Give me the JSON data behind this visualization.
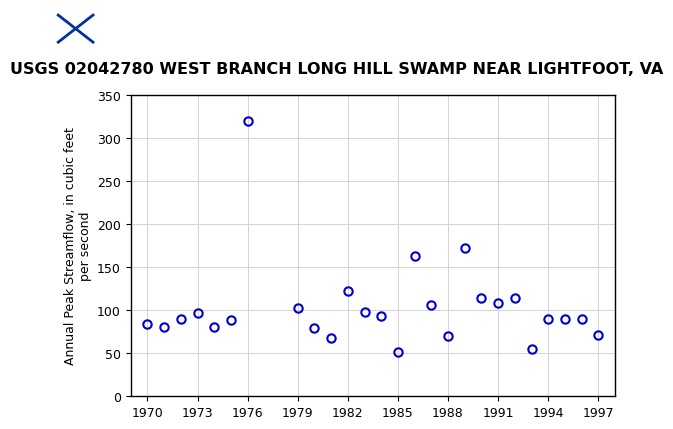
{
  "title": "USGS 02042780 WEST BRANCH LONG HILL SWAMP NEAR LIGHTFOOT, VA",
  "ylabel": "Annual Peak Streamflow, in cubic feet\nper second",
  "xlabel": "",
  "years": [
    1970,
    1971,
    1972,
    1973,
    1974,
    1975,
    1976,
    1979,
    1980,
    1981,
    1982,
    1983,
    1984,
    1985,
    1986,
    1987,
    1988,
    1989,
    1990,
    1991,
    1992,
    1993,
    1994,
    1995,
    1996,
    1997
  ],
  "flows": [
    84,
    81,
    90,
    97,
    80,
    89,
    320,
    103,
    79,
    68,
    122,
    98,
    93,
    51,
    163,
    106,
    70,
    172,
    114,
    109,
    114,
    55,
    90,
    90,
    90,
    71
  ],
  "xlim": [
    1969,
    1998
  ],
  "ylim": [
    0,
    350
  ],
  "xticks": [
    1970,
    1973,
    1976,
    1979,
    1982,
    1985,
    1988,
    1991,
    1994,
    1997
  ],
  "yticks": [
    0,
    50,
    100,
    150,
    200,
    250,
    300,
    350
  ],
  "marker_color": "#0000CC",
  "marker_size": 6,
  "header_bg": "#1a6b3c",
  "title_fontsize": 11.5,
  "axis_fontsize": 9,
  "tick_fontsize": 9
}
